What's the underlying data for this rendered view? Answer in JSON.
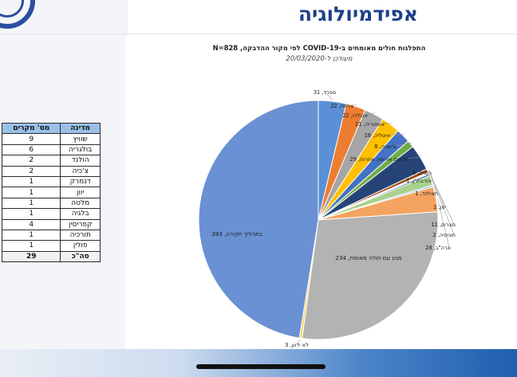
{
  "header": {
    "title": "אפידמיולוגיה"
  },
  "table": {
    "columns": [
      "מדינה",
      "מס' מקרים"
    ],
    "rows": [
      {
        "country": "שוויץ",
        "count": "9"
      },
      {
        "country": "בולגריה",
        "count": "6"
      },
      {
        "country": "הולנד",
        "count": "2"
      },
      {
        "country": "צ'כיה",
        "count": "2"
      },
      {
        "country": "דנמרק",
        "count": "1"
      },
      {
        "country": "יוון",
        "count": "1"
      },
      {
        "country": "מלטה",
        "count": "1"
      },
      {
        "country": "בלגיה",
        "count": "1"
      },
      {
        "country": "קפריסין",
        "count": "4"
      },
      {
        "country": "תורכיה",
        "count": "1"
      },
      {
        "country": "פולין",
        "count": "1"
      }
    ],
    "total": {
      "country": "סה\"כ",
      "count": "29"
    }
  },
  "chart_data": {
    "type": "pie",
    "title": "התפלגות חולים מאומתים ב-COVID-19 לפי מקור ההדבקה, N=828",
    "subtitle": "מעודכן ל-20/03/2020",
    "slices": [
      {
        "label": "ספרד",
        "value": 31,
        "color": "#5b8fd6"
      },
      {
        "label": "צרפת",
        "value": 22,
        "color": "#ed7d31"
      },
      {
        "label": "אנגליה",
        "value": 22,
        "color": "#a5a5a5"
      },
      {
        "label": "אוסטריה",
        "value": 21,
        "color": "#ffc000"
      },
      {
        "label": "איטליה",
        "value": 16,
        "color": "#4472c4"
      },
      {
        "label": "גרמניה",
        "value": 8,
        "color": "#70ad47"
      },
      {
        "label": "מדינות אירופה אחרות",
        "value": 29,
        "color": "#264478"
      },
      {
        "label": "רוסיה",
        "value": 4,
        "color": "#9e480e"
      },
      {
        "label": "אזרבייג'ן",
        "value": 1,
        "color": "#636363"
      },
      {
        "label": "תאילנד",
        "value": 1,
        "color": "#997300"
      },
      {
        "label": "יפן",
        "value": 2,
        "color": "#255e91"
      },
      {
        "label": "מצרים",
        "value": 11,
        "color": "#a9d18e"
      },
      {
        "label": "תוניסיה",
        "value": 2,
        "color": "#9dc3e6"
      },
      {
        "label": "ארה\"ב",
        "value": 28,
        "color": "#f4a460"
      },
      {
        "label": "מגע עם חולה מאומת",
        "value": 234,
        "color": "#b3b3b3"
      },
      {
        "label": "לא ידוע",
        "value": 3,
        "color": "#ffd966"
      },
      {
        "label": "בתהליך חקירה",
        "value": 393,
        "color": "#6a91d3"
      }
    ]
  }
}
